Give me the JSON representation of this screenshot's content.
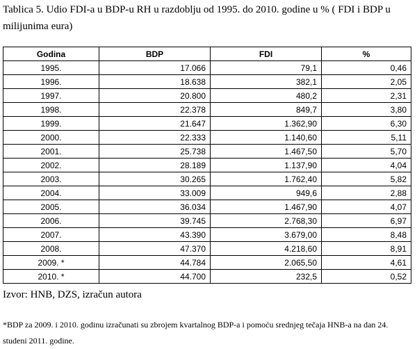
{
  "caption": "Tablica 5. Udio FDI-a u BDP-u RH u razdoblju od 1995. do 2010. godine u % ( FDI i BDP u milijunima eura)",
  "table": {
    "headers": [
      "Godina",
      "BDP",
      "FDI",
      "%"
    ],
    "rows": [
      [
        "1995.",
        "17.066",
        "79,1",
        "0,46"
      ],
      [
        "1996.",
        "18.638",
        "382,1",
        "2,05"
      ],
      [
        "1997.",
        "20.800",
        "480,2",
        "2,31"
      ],
      [
        "1998.",
        "22.378",
        "849,7",
        "3,80"
      ],
      [
        "1999.",
        "21.647",
        "1.362,90",
        "6,30"
      ],
      [
        "2000.",
        "22.333",
        "1.140,60",
        "5,11"
      ],
      [
        "2001.",
        "25.738",
        "1.467,50",
        "5,70"
      ],
      [
        "2002.",
        "28.189",
        "1.137,90",
        "4,04"
      ],
      [
        "2003.",
        "30.265",
        "1.762,40",
        "5,82"
      ],
      [
        "2004.",
        "33.009",
        "949,6",
        "2,88"
      ],
      [
        "2005.",
        "36.034",
        "1.467,90",
        "4,07"
      ],
      [
        "2006.",
        "39.745",
        "2.768,30",
        "6,97"
      ],
      [
        "2007.",
        "43.390",
        "3.679,00",
        "8,48"
      ],
      [
        "2008.",
        "47.370",
        "4.218,60",
        "8,91"
      ],
      [
        "2009. *",
        "44.784",
        "2.065,50",
        "4,61"
      ],
      [
        "2010. *",
        "44.700",
        "232,5",
        "0,52"
      ]
    ]
  },
  "source": "Izvor: HNB, DZS, izračun autora",
  "footnote": "*BDP za 2009. i 2010. godinu izračunati su zbrojem kvartalnog BDP-a i pomoću srednjeg tečaja HNB-a na dan 24. studeni 2011. godine."
}
